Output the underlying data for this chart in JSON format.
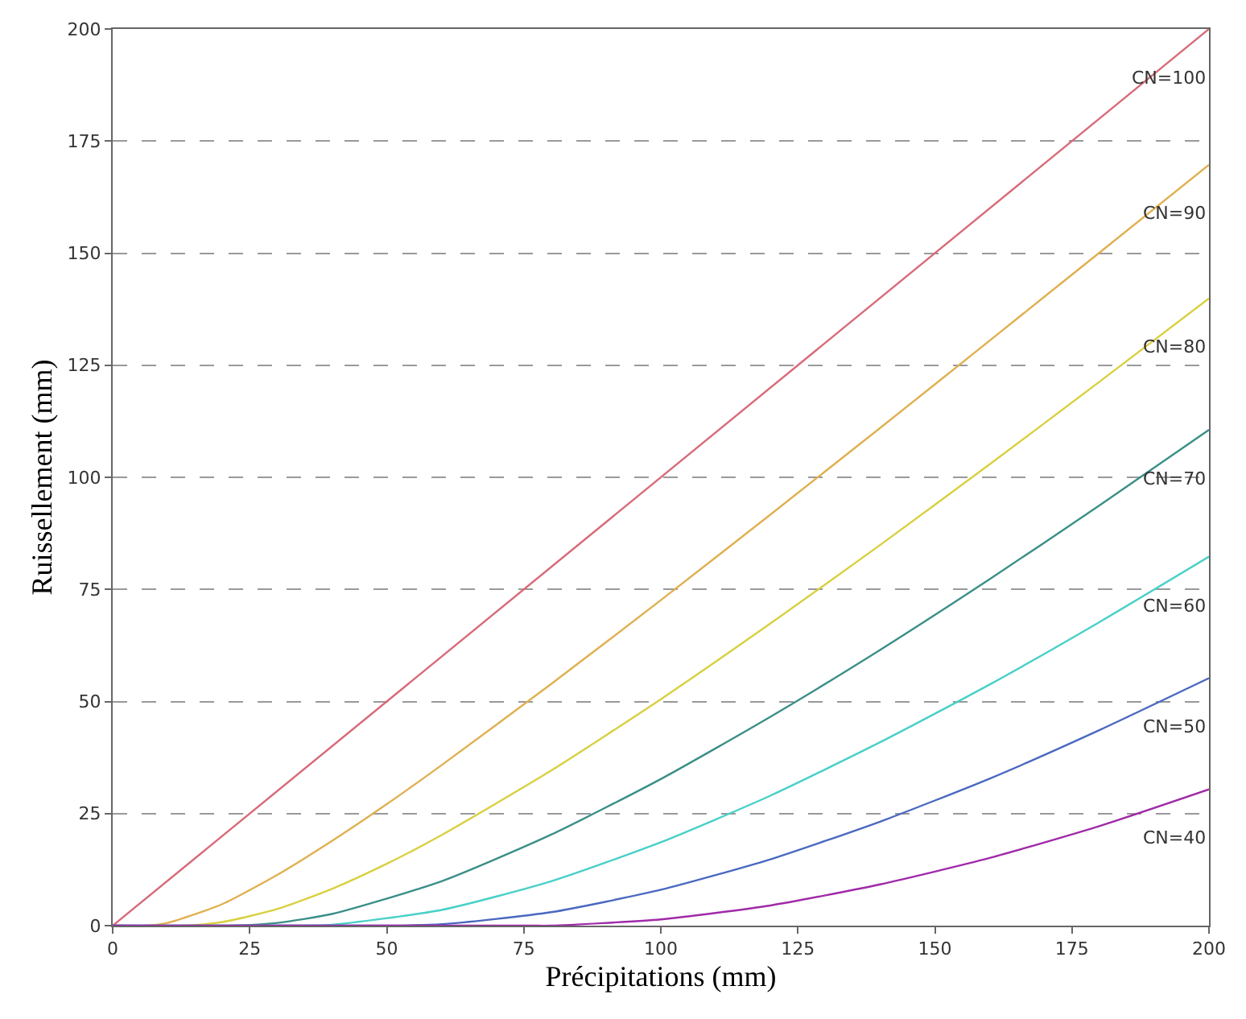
{
  "chart_data": {
    "type": "line",
    "xlabel": "Précipitations (mm)",
    "ylabel": "Ruissellement (mm)",
    "xlim": [
      0,
      200
    ],
    "xticks": [
      0,
      25,
      50,
      75,
      100,
      125,
      150,
      175,
      200
    ],
    "ylim": [
      0,
      200
    ],
    "yticks": [
      0,
      25,
      50,
      75,
      100,
      125,
      150,
      175,
      200
    ],
    "grid": "y",
    "legend": false,
    "marker": "none",
    "line_style": "solid",
    "series": [
      {
        "name": "CN=100",
        "color": "#d86a78",
        "x": [
          0,
          200
        ],
        "values": [
          0,
          200
        ]
      },
      {
        "name": "CN=90",
        "color": "#e0b050",
        "x": [
          0,
          6,
          10,
          20,
          30,
          40,
          50,
          60,
          80,
          100,
          120,
          140,
          160,
          180,
          200
        ],
        "values": [
          0,
          0,
          0.6,
          4.8,
          11.3,
          18.9,
          27.1,
          35.8,
          53.9,
          72.6,
          91.7,
          111.0,
          130.5,
          150.1,
          169.7
        ]
      },
      {
        "name": "CN=80",
        "color": "#d8d040",
        "x": [
          0,
          13,
          20,
          30,
          40,
          50,
          60,
          80,
          100,
          120,
          140,
          160,
          180,
          200
        ],
        "values": [
          0,
          0,
          0.8,
          3.7,
          8.2,
          13.8,
          20.2,
          34.6,
          50.5,
          67.4,
          84.9,
          102.9,
          121.3,
          139.9
        ]
      },
      {
        "name": "CN=70",
        "color": "#3a8f88",
        "x": [
          0,
          22,
          30,
          40,
          60,
          80,
          100,
          120,
          140,
          160,
          180,
          200
        ],
        "values": [
          0,
          0,
          0.6,
          2.6,
          9.9,
          20.3,
          32.7,
          46.6,
          61.5,
          77.3,
          93.7,
          110.6
        ]
      },
      {
        "name": "CN=60",
        "color": "#48d0c8",
        "x": [
          0,
          34,
          40,
          60,
          80,
          100,
          120,
          140,
          160,
          180,
          200
        ],
        "values": [
          0,
          0,
          0.2,
          3.5,
          9.9,
          18.6,
          29.0,
          40.9,
          53.8,
          67.7,
          82.3
        ]
      },
      {
        "name": "CN=50",
        "color": "#4a68c0",
        "x": [
          0,
          51,
          60,
          80,
          100,
          120,
          140,
          160,
          180,
          200
        ],
        "values": [
          0,
          0,
          0.3,
          3.0,
          8.0,
          14.8,
          23.2,
          32.8,
          43.6,
          55.2
        ]
      },
      {
        "name": "CN=40",
        "color": "#a02aa8",
        "x": [
          0,
          76,
          80,
          100,
          120,
          140,
          160,
          180,
          200
        ],
        "values": [
          0,
          0,
          0,
          1.4,
          4.5,
          9.2,
          15.1,
          22.2,
          30.4
        ]
      }
    ]
  }
}
